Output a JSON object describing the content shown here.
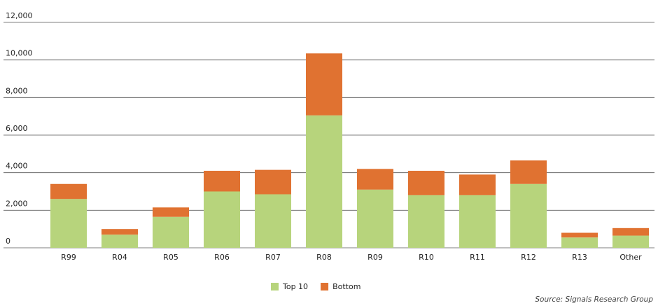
{
  "chart_data": {
    "type": "stacked-bar",
    "categories": [
      "R99",
      "R04",
      "R05",
      "R06",
      "R07",
      "R08",
      "R09",
      "R10",
      "R11",
      "R12",
      "R13",
      "Other"
    ],
    "series": [
      {
        "name": "Top 10",
        "color": "#b7d47c",
        "values": [
          2600,
          700,
          1650,
          3000,
          2850,
          7050,
          3100,
          2800,
          2800,
          3400,
          550,
          650
        ]
      },
      {
        "name": "Bottom",
        "color": "#e07231",
        "values": [
          800,
          300,
          500,
          1100,
          1300,
          3300,
          1100,
          1300,
          1100,
          1250,
          250,
          400
        ]
      }
    ],
    "ylim": [
      0,
      12000
    ],
    "yticks": [
      0,
      {
        "value": 2000,
        "label": "2,000"
      },
      {
        "value": 4000,
        "label": "4,000"
      },
      {
        "value": 6000,
        "label": "6,000"
      },
      {
        "value": 8000,
        "label": "8,000"
      },
      {
        "value": 10000,
        "label": "10,000"
      },
      {
        "value": 12000,
        "label": "12,000"
      }
    ],
    "grid": true,
    "legend": "bottom",
    "source": "Source: Signals Research Group"
  }
}
